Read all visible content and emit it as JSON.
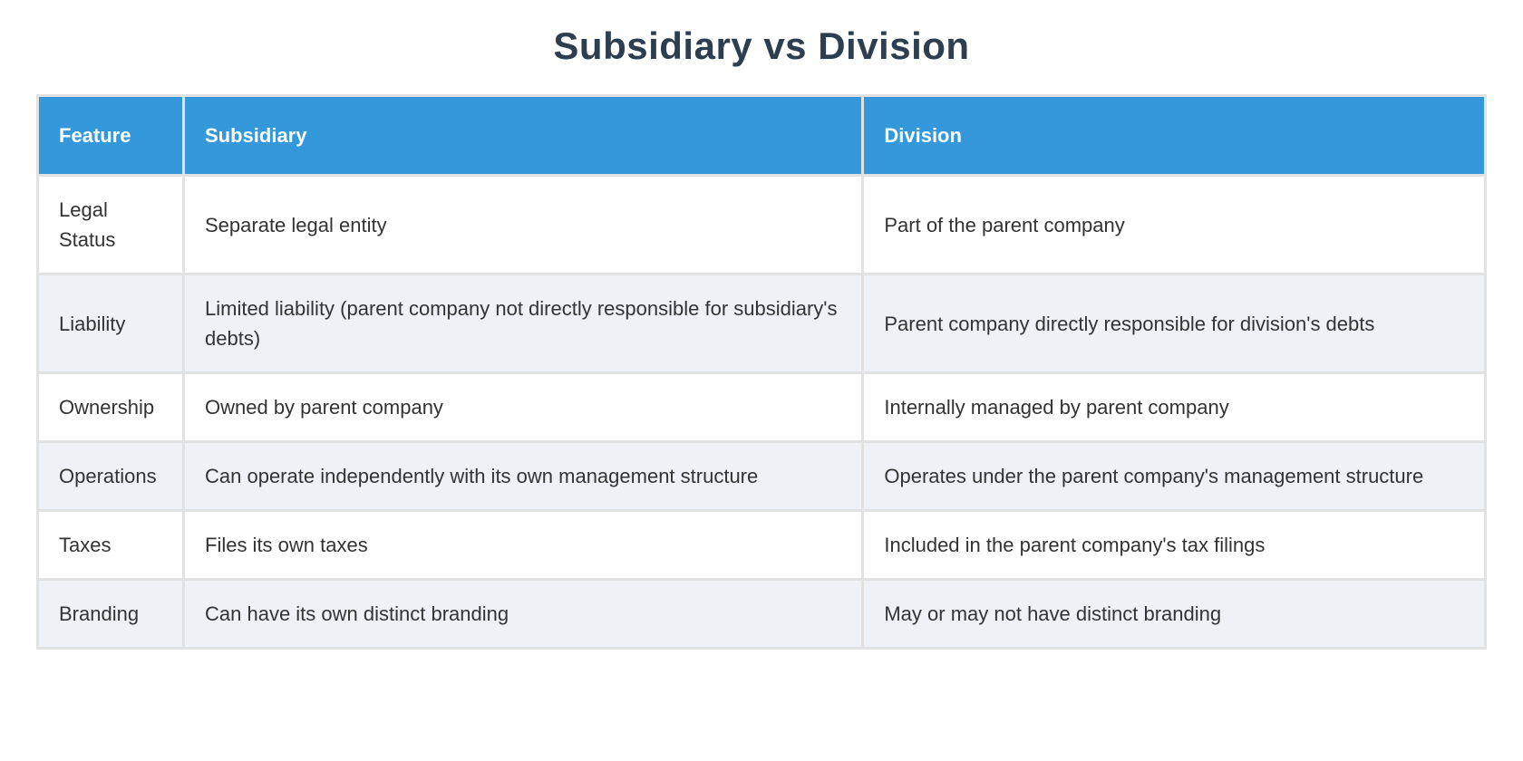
{
  "page": {
    "title": "Subsidiary vs Division"
  },
  "colors": {
    "header_bg": "#3498db",
    "header_text": "#ffffff",
    "row_bg": "#ffffff",
    "row_alt_bg": "#eef2f7",
    "grid": "#e2e2e2",
    "title_text": "#2c3e50",
    "body_text": "#333333"
  },
  "chart_data": {
    "type": "table",
    "title": "Subsidiary vs Division",
    "columns": [
      "Feature",
      "Subsidiary",
      "Division"
    ],
    "rows": [
      [
        "Legal Status",
        "Separate legal entity",
        "Part of the parent company"
      ],
      [
        "Liability",
        "Limited liability (parent company not directly responsible for subsidiary's debts)",
        "Parent company directly responsible for division's debts"
      ],
      [
        "Ownership",
        "Owned by parent company",
        "Internally managed by parent company"
      ],
      [
        "Operations",
        "Can operate independently with its own management structure",
        "Operates under the parent company's management structure"
      ],
      [
        "Taxes",
        "Files its own taxes",
        "Included in the parent company's tax filings"
      ],
      [
        "Branding",
        "Can have its own distinct branding",
        "May or may not have distinct branding"
      ]
    ],
    "layout": {
      "zebra_striping": true,
      "header_position": "top",
      "grid": true
    }
  }
}
